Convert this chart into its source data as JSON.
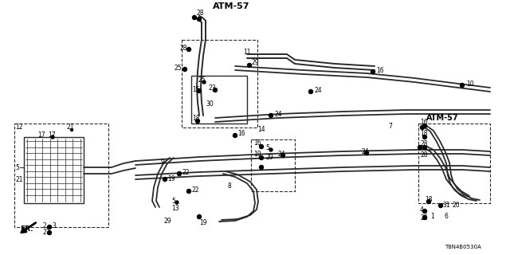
{
  "title1": "ATM-57",
  "title2": "ATM-57",
  "part_number": "T8N4B0530A",
  "background": "#ffffff",
  "line_color": "#2a2a2a",
  "text_color": "#000000",
  "figsize": [
    6.4,
    3.2
  ],
  "dpi": 100
}
